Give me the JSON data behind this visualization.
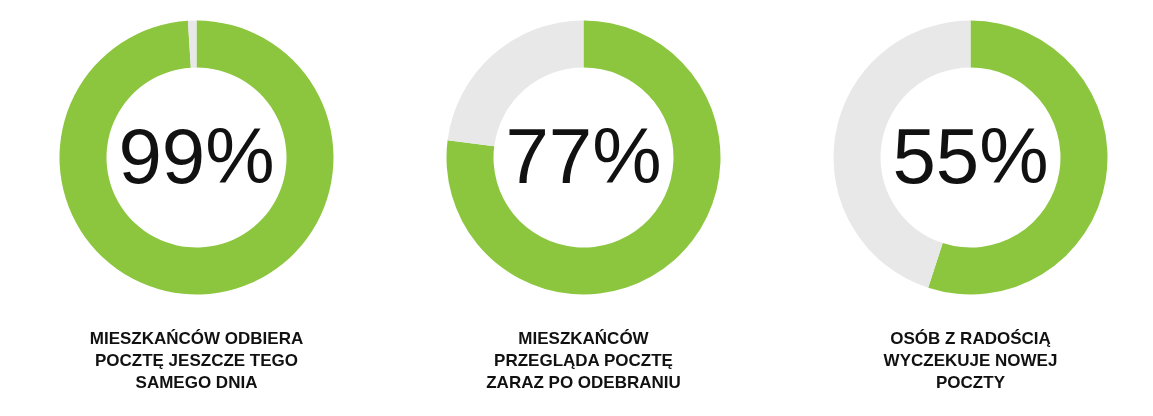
{
  "chart_data": [
    {
      "type": "donut",
      "categories": [
        null,
        null
      ],
      "values": [
        99,
        1
      ],
      "colors": [
        "#8cc63f",
        "#e8e8e8"
      ],
      "value_labels": [
        "99%",
        null
      ],
      "title": "MIESZKAŃCÓW ODBIERA\nPOCZTĘ JESZCZE TEGO\nSAMEGO DNIA"
    },
    {
      "type": "donut",
      "categories": [
        null,
        null
      ],
      "values": [
        77,
        23
      ],
      "colors": [
        "#8cc63f",
        "#e8e8e8"
      ],
      "value_labels": [
        "77%",
        null
      ],
      "title": "MIESZKAŃCÓW\nPRZEGLĄDA POCZTĘ\nZARAZ PO ODEBRANIU"
    },
    {
      "type": "donut",
      "categories": [
        null,
        null
      ],
      "values": [
        55,
        45
      ],
      "colors": [
        "#8cc63f",
        "#e8e8e8"
      ],
      "value_labels": [
        "55%",
        null
      ],
      "title": "OSÓB Z RADOŚCIĄ\nWYCZEKUJE NOWEJ\nPOCZTY"
    }
  ]
}
